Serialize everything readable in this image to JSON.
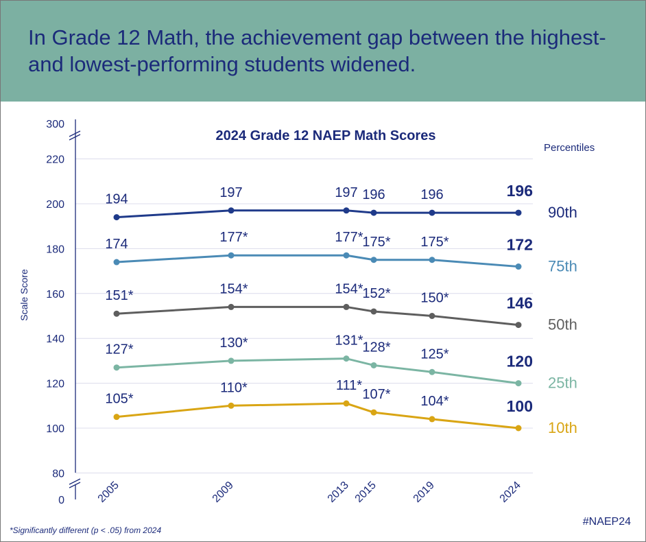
{
  "headline": "In Grade 12 Math, the achievement gap between the highest- and lowest-performing students widened.",
  "footnote": "*Significantly different (p < .05) from 2024",
  "hashtag": "#NAEP24",
  "chart_data": {
    "type": "line",
    "title": "2024 Grade 12 NAEP Math Scores",
    "ylabel": "Scale Score",
    "legend_title": "Percentiles",
    "legend_placement": "right",
    "grid": true,
    "ylim": [
      80,
      220
    ],
    "y_axis_break": true,
    "y_ticks": [
      "300",
      "220",
      "200",
      "180",
      "160",
      "140",
      "120",
      "100",
      "80",
      "0"
    ],
    "categories": [
      "2005",
      "2009",
      "2013",
      "2015",
      "2019",
      "2024"
    ],
    "series": [
      {
        "name": "90th",
        "color": "#1f3a8a",
        "values": [
          194,
          197,
          197,
          196,
          196,
          196
        ],
        "labels": [
          "194",
          "197",
          "197",
          "196",
          "196",
          "196"
        ]
      },
      {
        "name": "75th",
        "color": "#4a8ab5",
        "values": [
          174,
          177,
          177,
          175,
          175,
          172
        ],
        "labels": [
          "174",
          "177*",
          "177*",
          "175*",
          "175*",
          "172"
        ]
      },
      {
        "name": "50th",
        "color": "#5e5e5e",
        "values": [
          151,
          154,
          154,
          152,
          150,
          146
        ],
        "labels": [
          "151*",
          "154*",
          "154*",
          "152*",
          "150*",
          "146"
        ]
      },
      {
        "name": "25th",
        "color": "#7bb5a3",
        "values": [
          127,
          130,
          131,
          128,
          125,
          120
        ],
        "labels": [
          "127*",
          "130*",
          "131*",
          "128*",
          "125*",
          "120"
        ]
      },
      {
        "name": "10th",
        "color": "#d9a514",
        "values": [
          105,
          110,
          111,
          107,
          104,
          100
        ],
        "labels": [
          "105*",
          "110*",
          "111*",
          "107*",
          "104*",
          "100"
        ]
      }
    ],
    "axis_color": "#1b2a7a",
    "grid_color": "#dcdcec"
  }
}
